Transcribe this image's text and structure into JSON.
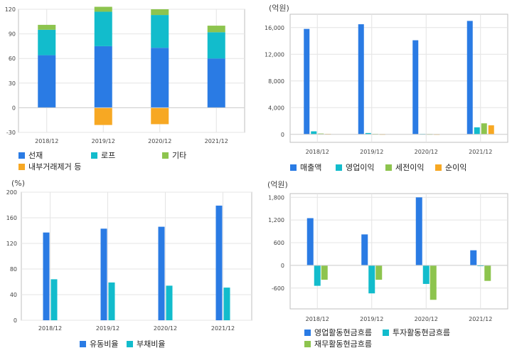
{
  "colors": {
    "blue": "#2a7be4",
    "cyan": "#12bccc",
    "green": "#8dc44e",
    "orange": "#f7a823",
    "grid": "#e4e4e4",
    "border": "#bfbfbf"
  },
  "chart_data": [
    {
      "id": "p1",
      "type": "bar",
      "stacked": true,
      "unit": "",
      "categories": [
        "2018/12",
        "2019/12",
        "2020/12",
        "2021/12"
      ],
      "yticks": [
        -30,
        0,
        30,
        60,
        90,
        120
      ],
      "ylim": [
        -30,
        120
      ],
      "series": [
        {
          "name": "선재",
          "color": "#2a7be4",
          "values": [
            64,
            75,
            73,
            60
          ]
        },
        {
          "name": "로프",
          "color": "#12bccc",
          "values": [
            31,
            42,
            40,
            32
          ]
        },
        {
          "name": "기타",
          "color": "#8dc44e",
          "values": [
            6,
            6,
            7,
            8
          ]
        },
        {
          "name": "내부거래제거 등",
          "color": "#f7a823",
          "values": [
            0,
            -21,
            -20,
            0
          ]
        }
      ]
    },
    {
      "id": "p2",
      "type": "bar",
      "unit": "(억원)",
      "categories": [
        "2018/12",
        "2019/12",
        "2020/12",
        "2021/12"
      ],
      "yticks": [
        0,
        4000,
        8000,
        12000,
        16000
      ],
      "ytick_labels": [
        "0",
        "4,000",
        "8,000",
        "12,000",
        "16,000"
      ],
      "ylim": [
        -1200,
        18000
      ],
      "series": [
        {
          "name": "매출액",
          "color": "#2a7be4",
          "values": [
            15800,
            16500,
            14100,
            17000
          ]
        },
        {
          "name": "영업이익",
          "color": "#12bccc",
          "values": [
            450,
            200,
            80,
            1050
          ]
        },
        {
          "name": "세전이익",
          "color": "#8dc44e",
          "values": [
            120,
            80,
            60,
            1650
          ]
        },
        {
          "name": "순이익",
          "color": "#f7a823",
          "values": [
            80,
            50,
            40,
            1350
          ]
        }
      ]
    },
    {
      "id": "p3",
      "type": "bar",
      "unit": "(%)",
      "categories": [
        "2018/12",
        "2019/12",
        "2020/12",
        "2021/12"
      ],
      "yticks": [
        0,
        40,
        80,
        120,
        160,
        200
      ],
      "ylim": [
        0,
        200
      ],
      "series": [
        {
          "name": "유동비율",
          "color": "#2a7be4",
          "values": [
            137,
            143,
            146,
            179
          ]
        },
        {
          "name": "부채비율",
          "color": "#12bccc",
          "values": [
            64,
            59,
            54,
            51
          ]
        }
      ]
    },
    {
      "id": "p4",
      "type": "bar",
      "unit": "(억원)",
      "categories": [
        "2018/12",
        "2019/12",
        "2020/12",
        "2021/12"
      ],
      "yticks": [
        -600,
        0,
        600,
        1200,
        1800
      ],
      "ytick_labels": [
        "-600",
        "0",
        "600",
        "1,200",
        "1,800"
      ],
      "ylim": [
        -1150,
        1900
      ],
      "series": [
        {
          "name": "영업활동현금흐름",
          "color": "#2a7be4",
          "values": [
            1250,
            820,
            1800,
            400
          ]
        },
        {
          "name": "투자활동현금흐름",
          "color": "#12bccc",
          "values": [
            -540,
            -740,
            -490,
            -20
          ]
        },
        {
          "name": "재무활동현금흐름",
          "color": "#8dc44e",
          "values": [
            -380,
            -380,
            -910,
            -410
          ]
        }
      ]
    }
  ]
}
